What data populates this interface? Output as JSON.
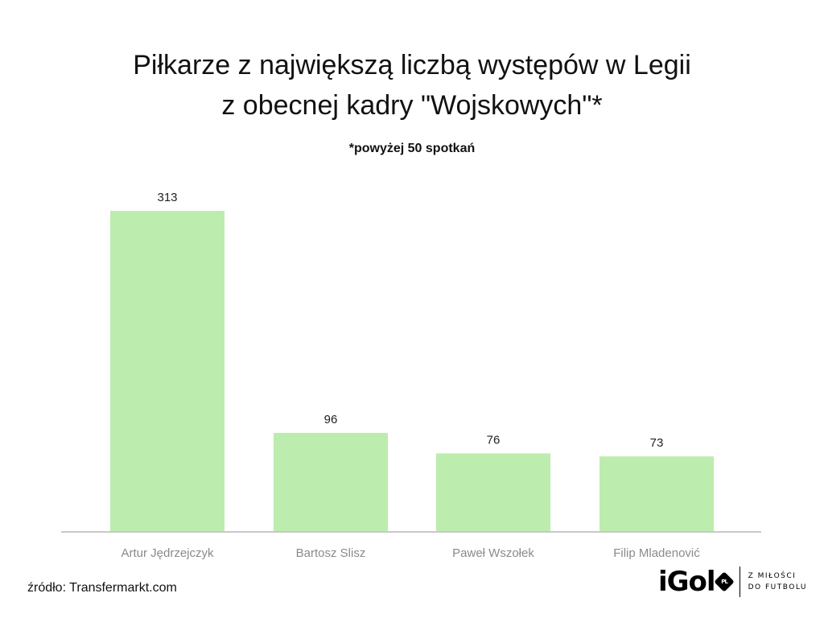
{
  "chart_data": {
    "type": "bar",
    "title_line1": "Piłkarze z największą liczbą występów w Legii",
    "title_line2": "z obecnej kadry \"Wojskowych\"*",
    "subtitle": "*powyżej 50 spotkań",
    "categories": [
      "Artur Jędrzejczyk",
      "Bartosz Slisz",
      "Paweł Wszołek",
      "Filip Mladenović"
    ],
    "values": [
      313,
      96,
      76,
      73
    ],
    "value_labels": [
      "313",
      "96",
      "76",
      "73"
    ],
    "xlabel": "",
    "ylabel": "",
    "ylim": [
      0,
      313
    ],
    "grid": false,
    "legend": "none",
    "bar_color": "#bdedae",
    "axis_color": "#c8c8c8"
  },
  "source": "źródło: Transfermarkt.com",
  "logo": {
    "name": "iGol",
    "badge": "PL",
    "tagline_line1": "Z MIŁOŚCI",
    "tagline_line2": "DO FUTBOLU"
  }
}
